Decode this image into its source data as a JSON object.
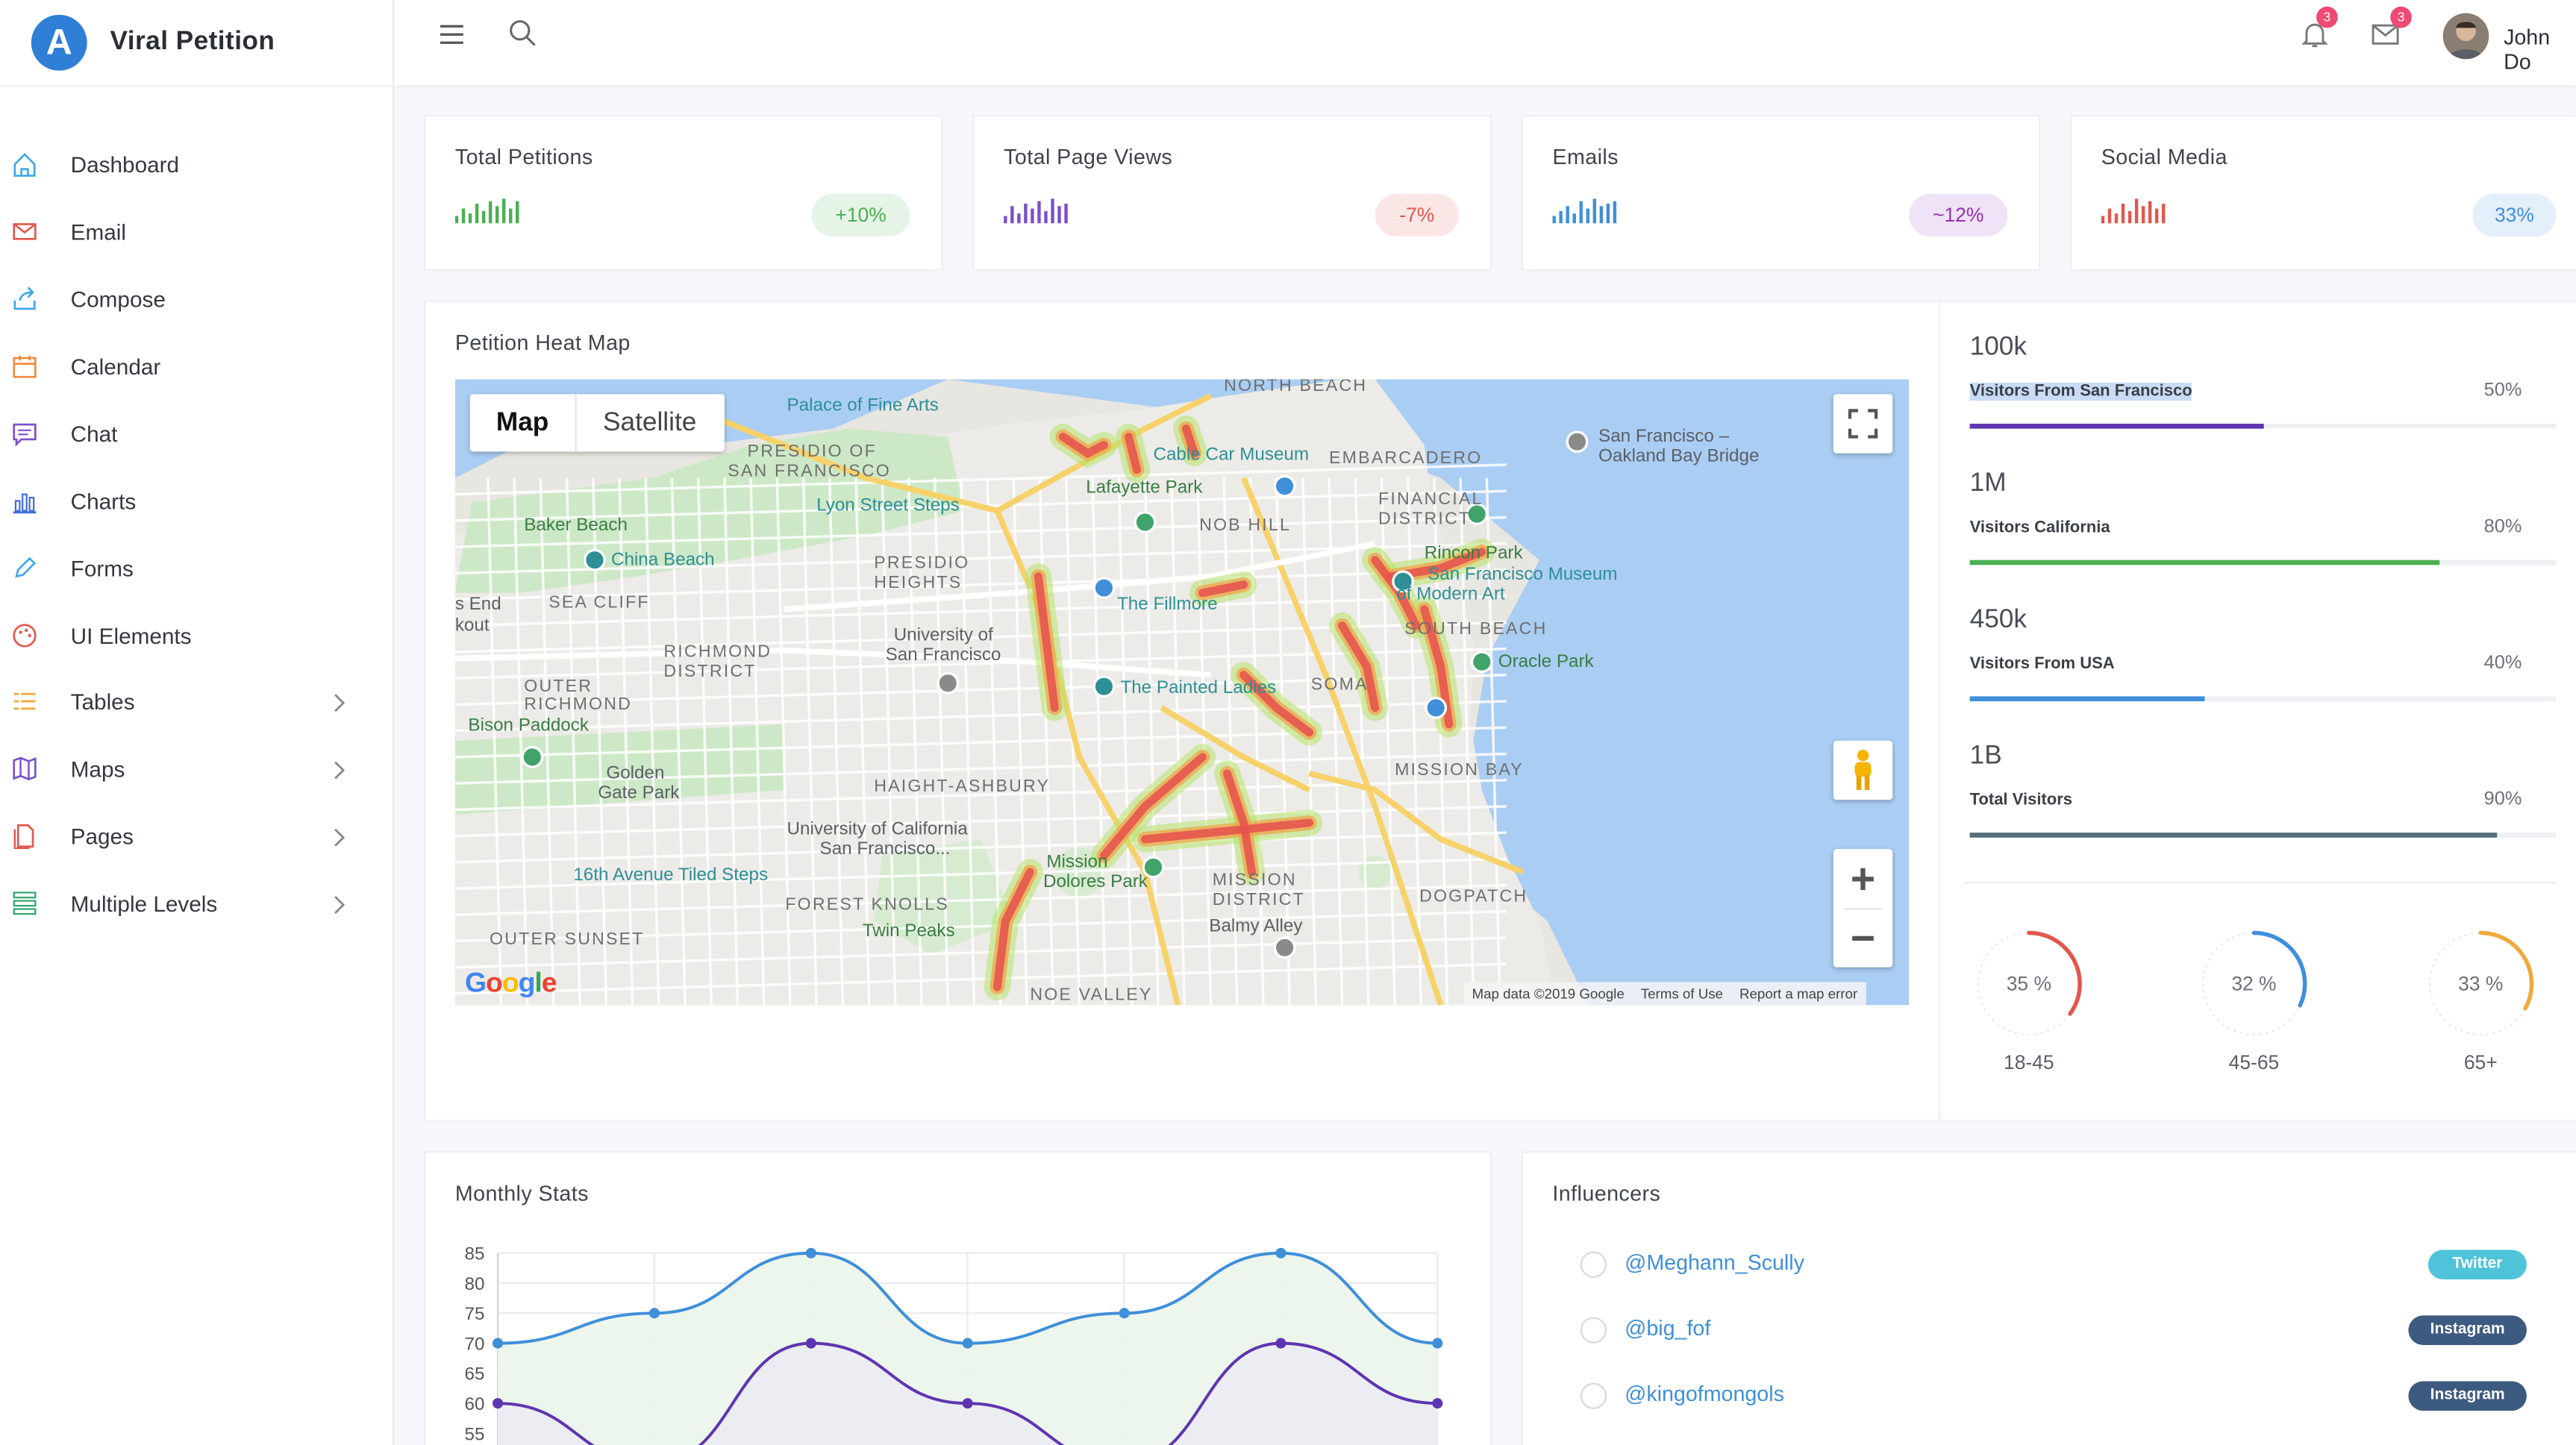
{
  "app": {
    "name": "Viral Petition",
    "logo_letter": "A",
    "brand_color": "#2f7fd6"
  },
  "sidebar": {
    "items": [
      {
        "label": "Dashboard",
        "icon": "home-icon",
        "color": "#3fa7e8"
      },
      {
        "label": "Email",
        "icon": "mail-icon",
        "color": "#e2574c"
      },
      {
        "label": "Compose",
        "icon": "share-icon",
        "color": "#3fa7e8"
      },
      {
        "label": "Calendar",
        "icon": "calendar-icon",
        "color": "#f08a3c"
      },
      {
        "label": "Chat",
        "icon": "chat-icon",
        "color": "#7a4fc9"
      },
      {
        "label": "Charts",
        "icon": "bar-chart-icon",
        "color": "#3f6fd9"
      },
      {
        "label": "Forms",
        "icon": "pencil-icon",
        "color": "#3fa7e8"
      },
      {
        "label": "UI Elements",
        "icon": "palette-icon",
        "color": "#e2574c"
      },
      {
        "label": "Tables",
        "icon": "list-icon",
        "color": "#f0a93c"
      },
      {
        "label": "Maps",
        "icon": "map-icon",
        "color": "#7a4fc9"
      },
      {
        "label": "Pages",
        "icon": "pages-icon",
        "color": "#e2574c"
      },
      {
        "label": "Multiple Levels",
        "icon": "levels-icon",
        "color": "#2fa56a"
      }
    ]
  },
  "header": {
    "notifications_count": "3",
    "messages_count": "3",
    "user_name": "John Do"
  },
  "summary_cards": [
    {
      "title": "Total Petitions",
      "change": "+10%",
      "color": "#4caf50",
      "pill_bg": "#e6f4e7",
      "pill_fg": "#4caf50",
      "spark": [
        3,
        6,
        4,
        8,
        5,
        9,
        7,
        10,
        6,
        9
      ]
    },
    {
      "title": "Total Page Views",
      "change": "-7%",
      "color": "#7a4fc9",
      "pill_bg": "#fbe6e6",
      "pill_fg": "#e2574c",
      "spark": [
        3,
        7,
        4,
        8,
        6,
        9,
        5,
        10,
        7,
        8
      ]
    },
    {
      "title": "Emails",
      "change": "~12%",
      "color": "#3f8fd9",
      "pill_bg": "#efe3f7",
      "pill_fg": "#9c2fb3",
      "spark": [
        3,
        5,
        7,
        4,
        9,
        6,
        10,
        7,
        8,
        9
      ]
    },
    {
      "title": "Social Media",
      "change": "33%",
      "color": "#e2574c",
      "pill_bg": "#e3effa",
      "pill_fg": "#3f8fd9",
      "spark": [
        3,
        6,
        4,
        8,
        5,
        10,
        7,
        9,
        6,
        8
      ]
    }
  ],
  "heatmap": {
    "title": "Petition Heat Map",
    "map_type_buttons": [
      "Map",
      "Satellite"
    ],
    "zoom_in": "+",
    "zoom_out": "−",
    "footer": [
      "Map data ©2019 Google",
      "Terms of Use",
      "Report a map error"
    ],
    "google": "Google",
    "labels": [
      {
        "text": "NORTH BEACH",
        "style": "caps"
      },
      {
        "text": "Palace of Fine Arts",
        "style": "poi"
      },
      {
        "text": "PRESIDIO OF",
        "style": "caps"
      },
      {
        "text": "SAN FRANCISCO",
        "style": "caps"
      },
      {
        "text": "Cable Car Museum",
        "style": "poi"
      },
      {
        "text": "EMBARCADERO",
        "style": "caps"
      },
      {
        "text": "San Francisco –",
        "style": ""
      },
      {
        "text": "Oakland Bay Bridge",
        "style": ""
      },
      {
        "text": "Lafayette Park",
        "style": "green"
      },
      {
        "text": "Lyon Street Steps",
        "style": "poi"
      },
      {
        "text": "FINANCIAL",
        "style": "caps"
      },
      {
        "text": "DISTRICT",
        "style": "caps"
      },
      {
        "text": "Baker Beach",
        "style": "green"
      },
      {
        "text": "NOB HILL",
        "style": "caps"
      },
      {
        "text": "China Beach",
        "style": "poi"
      },
      {
        "text": "PRESIDIO",
        "style": "caps"
      },
      {
        "text": "HEIGHTS",
        "style": "caps"
      },
      {
        "text": "Rincon Park",
        "style": "green"
      },
      {
        "text": "San Francisco Museum",
        "style": "poi"
      },
      {
        "text": "of Modern Art",
        "style": "poi"
      },
      {
        "text": "SEA CLIFF",
        "style": "caps"
      },
      {
        "text": "The Fillmore",
        "style": "poi"
      },
      {
        "text": "SOUTH BEACH",
        "style": "caps"
      },
      {
        "text": "University of",
        "style": ""
      },
      {
        "text": "San Francisco",
        "style": ""
      },
      {
        "text": "RICHMOND",
        "style": "caps"
      },
      {
        "text": "DISTRICT",
        "style": "caps"
      },
      {
        "text": "Oracle Park",
        "style": "green"
      },
      {
        "text": "OUTER",
        "style": "caps"
      },
      {
        "text": "RICHMOND",
        "style": "caps"
      },
      {
        "text": "The Painted Ladies",
        "style": "poi"
      },
      {
        "text": "SOMA",
        "style": "caps"
      },
      {
        "text": "Bison Paddock",
        "style": "green"
      },
      {
        "text": "Golden",
        "style": ""
      },
      {
        "text": "Gate Park",
        "style": ""
      },
      {
        "text": "HAIGHT-ASHBURY",
        "style": "caps"
      },
      {
        "text": "MISSION BAY",
        "style": "caps"
      },
      {
        "text": "University of California",
        "style": ""
      },
      {
        "text": "San Francisco...",
        "style": ""
      },
      {
        "text": "16th Avenue Tiled Steps",
        "style": "poi"
      },
      {
        "text": "Mission",
        "style": "green"
      },
      {
        "text": "Dolores Park",
        "style": "green"
      },
      {
        "text": "MISSION",
        "style": "caps"
      },
      {
        "text": "DISTRICT",
        "style": "caps"
      },
      {
        "text": "DOGPATCH",
        "style": "caps"
      },
      {
        "text": "FOREST KNOLLS",
        "style": "caps"
      },
      {
        "text": "Twin Peaks",
        "style": "green"
      },
      {
        "text": "Balmy Alley",
        "style": ""
      },
      {
        "text": "OUTER SUNSET",
        "style": "caps"
      },
      {
        "text": "NOE VALLEY",
        "style": "caps"
      },
      {
        "text": "s End",
        "style": ""
      },
      {
        "text": "kout",
        "style": ""
      }
    ]
  },
  "visitor_stats": [
    {
      "value": "100k",
      "label": "Visitors From San Francisco",
      "percent": "50%",
      "fraction": 0.5,
      "color": "#5e35b1"
    },
    {
      "value": "1M",
      "label": "Visitors California",
      "percent": "80%",
      "fraction": 0.8,
      "color": "#4caf50"
    },
    {
      "value": "450k",
      "label": "Visitors From USA",
      "percent": "40%",
      "fraction": 0.4,
      "color": "#3f8fd9"
    },
    {
      "value": "1B",
      "label": "Total Visitors",
      "percent": "90%",
      "fraction": 0.9,
      "color": "#546e7a"
    }
  ],
  "age_donuts": [
    {
      "value": "35 %",
      "fraction": 0.35,
      "label": "18-45",
      "color": "#e2574c"
    },
    {
      "value": "32 %",
      "fraction": 0.32,
      "label": "45-65",
      "color": "#3f8fd9"
    },
    {
      "value": "33 %",
      "fraction": 0.33,
      "label": "65+",
      "color": "#f0a93c"
    }
  ],
  "monthly_stats": {
    "title": "Monthly Stats"
  },
  "chart_data": {
    "type": "line",
    "x": [
      0,
      1,
      2,
      3,
      4,
      5,
      6
    ],
    "series": [
      {
        "values": [
          70,
          75,
          85,
          70,
          75,
          85,
          70
        ],
        "color": "#3f8fd9",
        "fill": "#eaf5ea"
      },
      {
        "values": [
          60,
          50,
          70,
          60,
          50,
          70,
          60
        ],
        "color": "#5e35b1",
        "fill": "#ecebf4"
      }
    ],
    "yticks": [
      "85",
      "80",
      "75",
      "70",
      "65",
      "60",
      "55"
    ],
    "ylim": [
      50,
      85
    ],
    "grid": true
  },
  "influencers": {
    "title": "Influencers",
    "items": [
      {
        "handle": "@Meghann_Scully",
        "network": "Twitter",
        "color": "#4fc3d9"
      },
      {
        "handle": "@big_fof",
        "network": "Instagram",
        "color": "#3d5a80"
      },
      {
        "handle": "@kingofmongols",
        "network": "Instagram",
        "color": "#3d5a80"
      }
    ]
  }
}
